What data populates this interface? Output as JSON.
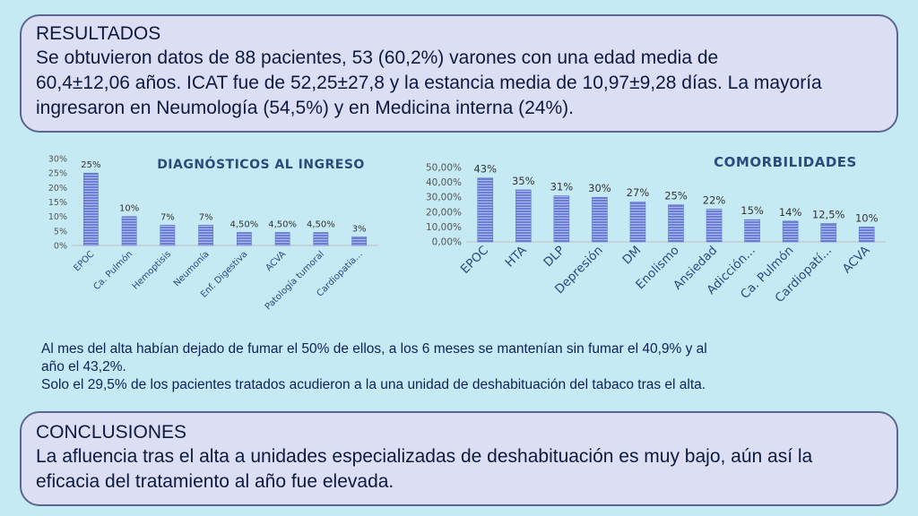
{
  "results": {
    "title": "RESULTADOS",
    "line1": "Se obtuvieron datos de 88 pacientes, 53 (60,2%) varones con una edad media de",
    "line2": "60,4±12,06 años. ICAT fue de 52,25±27,8 y la estancia media de 10,97±9,28 días. La mayoría",
    "line3": "ingresaron en Neumología (54,5%) y en Medicina interna (24%)."
  },
  "followup": {
    "line1": "Al mes del alta habían dejado de fumar el 50% de ellos, a los 6 meses se mantenían sin fumar el 40,9% y al",
    "line2": "año el 43,2%.",
    "line3": "Solo el 29,5% de los pacientes tratados acudieron a la una unidad de deshabituación del tabaco tras el alta."
  },
  "conclusions": {
    "title": "CONCLUSIONES",
    "line1": "La afluencia tras el alta a unidades especializadas de deshabituación es muy bajo, aún así la",
    "line2": "eficacia del tratamiento al año fue elevada."
  },
  "colors": {
    "bar": "#6b7fd6",
    "bar_stripe": "#aeb9ee"
  },
  "chart_data": [
    {
      "type": "bar",
      "title": "DIAGNÓSTICOS  AL INGRESO",
      "categories": [
        "EPOC",
        "Ca. Pulmón",
        "Hemoptisis",
        "Neumonía",
        "Enf. Digestiva",
        "ACVA",
        "Patología tumoral",
        "Cardiopatía..."
      ],
      "values": [
        25,
        10,
        7,
        7,
        4.5,
        4.5,
        4.5,
        3
      ],
      "data_labels": [
        "25%",
        "10%",
        "7%",
        "7%",
        "4,50%",
        "4,50%",
        "4,50%",
        "3%"
      ],
      "yticks": [
        "0%",
        "5%",
        "10%",
        "15%",
        "20%",
        "25%",
        "30%"
      ],
      "ylim": [
        0,
        30
      ],
      "grid": false,
      "legend": "none"
    },
    {
      "type": "bar",
      "title": "COMORBILIDADES",
      "categories": [
        "EPOC",
        "HTA",
        "DLP",
        "Depresión",
        "DM",
        "Enolismo",
        "Ansiedad",
        "Adicción...",
        "Ca. Pulmón",
        "Cardiopatí...",
        "ACVA"
      ],
      "values": [
        43,
        35,
        31,
        30,
        27,
        25,
        22,
        15,
        14,
        12.5,
        10
      ],
      "data_labels": [
        "43%",
        "35%",
        "31%",
        "30%",
        "27%",
        "25%",
        "22%",
        "15%",
        "14%",
        "12,5%",
        "10%"
      ],
      "yticks": [
        "0,00%",
        "10,00%",
        "20,00%",
        "30,00%",
        "40,00%",
        "50,00%"
      ],
      "ylim": [
        0,
        50
      ],
      "grid": false,
      "legend": "none"
    }
  ]
}
